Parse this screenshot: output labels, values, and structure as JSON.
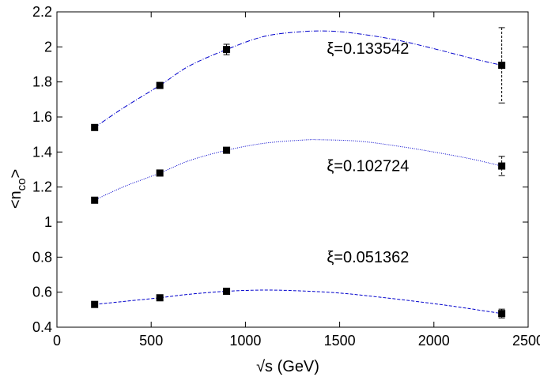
{
  "chart_data": {
    "type": "scatter",
    "xlabel": "√s (GeV)",
    "ylabel_main": "<n",
    "ylabel_sub": "co",
    "ylabel_end": ">",
    "xlim": [
      0,
      2500
    ],
    "ylim": [
      0.4,
      2.2
    ],
    "xticks": [
      0,
      500,
      1000,
      1500,
      2000,
      2500
    ],
    "yticks": [
      0.4,
      0.6,
      0.8,
      1,
      1.2,
      1.4,
      1.6,
      1.8,
      2,
      2.2
    ],
    "grid": false,
    "series": [
      {
        "name": "ξ=0.133542",
        "color": "#0000cc",
        "line_style": "dash-dot",
        "x": [
          200,
          546,
          900,
          2360
        ],
        "y": [
          1.54,
          1.78,
          1.985,
          1.895
        ],
        "yerr": [
          0.01,
          0.01,
          0.03,
          0.215
        ],
        "fit_x": [
          200,
          350,
          546,
          700,
          900,
          1100,
          1300,
          1450,
          1600,
          1800,
          2000,
          2200,
          2360
        ],
        "fit_y": [
          1.54,
          1.65,
          1.78,
          1.89,
          1.985,
          2.06,
          2.087,
          2.09,
          2.075,
          2.04,
          1.99,
          1.935,
          1.895
        ]
      },
      {
        "name": "ξ=0.102724",
        "color": "#0000cc",
        "line_style": "dotted",
        "x": [
          200,
          546,
          900,
          2360
        ],
        "y": [
          1.125,
          1.28,
          1.41,
          1.32
        ],
        "yerr": [
          0.01,
          0.01,
          0.01,
          0.055
        ],
        "fit_x": [
          200,
          350,
          546,
          700,
          900,
          1100,
          1300,
          1400,
          1600,
          1800,
          2000,
          2200,
          2360
        ],
        "fit_y": [
          1.125,
          1.2,
          1.28,
          1.35,
          1.41,
          1.45,
          1.468,
          1.47,
          1.462,
          1.435,
          1.4,
          1.36,
          1.32
        ]
      },
      {
        "name": "ξ=0.051362",
        "color": "#0000cc",
        "line_style": "dashed",
        "x": [
          200,
          546,
          900,
          2360
        ],
        "y": [
          0.53,
          0.568,
          0.605,
          0.478
        ],
        "yerr": [
          0.008,
          0.008,
          0.008,
          0.025
        ],
        "fit_x": [
          200,
          400,
          546,
          700,
          900,
          1100,
          1300,
          1500,
          1700,
          1900,
          2100,
          2360
        ],
        "fit_y": [
          0.53,
          0.552,
          0.568,
          0.588,
          0.605,
          0.612,
          0.607,
          0.595,
          0.573,
          0.548,
          0.52,
          0.478
        ]
      }
    ],
    "annotations": [
      {
        "text": "ξ=0.133542",
        "x": 1650,
        "y": 1.96
      },
      {
        "text": "ξ=0.102724",
        "x": 1650,
        "y": 1.29
      },
      {
        "text": "ξ=0.051362",
        "x": 1650,
        "y": 0.77
      }
    ]
  }
}
